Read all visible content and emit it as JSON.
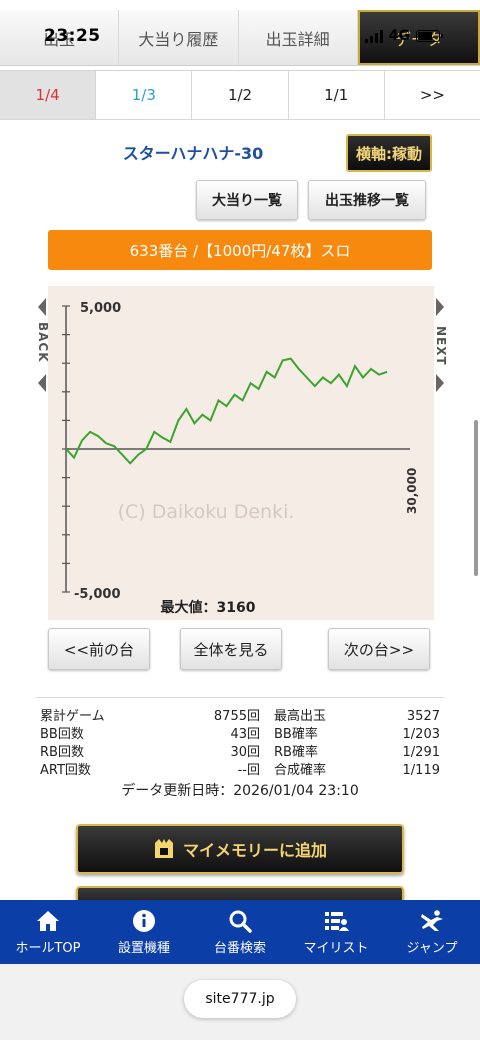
{
  "status_bar": {
    "time": "23:25",
    "network": "4G"
  },
  "top_tabs": [
    {
      "label": "出玉",
      "active": false
    },
    {
      "label": "大当り履歴",
      "active": false
    },
    {
      "label": "出玉詳細",
      "active": false
    },
    {
      "label": "データ",
      "active": true
    }
  ],
  "page_tabs": [
    {
      "label": "1/4"
    },
    {
      "label": "1/3"
    },
    {
      "label": "1/2"
    },
    {
      "label": "1/1"
    },
    {
      "label": ">>"
    }
  ],
  "machine": {
    "title": "スターハナハナ-30",
    "axis_button": "横軸:稼動",
    "jackpot_list_button": "大当り一覧",
    "payout_list_button": "出玉推移一覧",
    "bar_text": "633番台 /【1000円/47枚】スロ"
  },
  "chart_labels": {
    "back": "BACK",
    "next": "NEXT",
    "watermark": "(C) Daikoku Denki.",
    "max_text": "最大値：3160"
  },
  "chart_data": {
    "type": "line",
    "ylim": [
      -5000,
      5000
    ],
    "xlim": [
      0,
      30000
    ],
    "y_tick_labels": [
      "5,000",
      "-5,000"
    ],
    "x_tick_label": "30,000",
    "series": [
      {
        "color": "#3aa52c",
        "x": [
          0,
          700,
          1400,
          2100,
          2800,
          3500,
          4200,
          4900,
          5600,
          6300,
          7000,
          7700,
          8400,
          9100,
          9800,
          10500,
          11200,
          11900,
          12600,
          13300,
          14000,
          14700,
          15400,
          16100,
          16800,
          17500,
          18200,
          18900,
          19600,
          20300,
          21000,
          21700,
          22400,
          23100,
          23800,
          24500,
          25200,
          25900,
          26600,
          27300,
          28000
        ],
        "y": [
          0,
          -300,
          300,
          600,
          450,
          200,
          100,
          -200,
          -500,
          -200,
          0,
          600,
          400,
          250,
          1000,
          1400,
          900,
          1200,
          1000,
          1700,
          1500,
          1900,
          1700,
          2300,
          2100,
          2700,
          2500,
          3100,
          3160,
          2800,
          2500,
          2200,
          2500,
          2300,
          2600,
          2200,
          2900,
          2500,
          2800,
          2600,
          2700
        ]
      }
    ]
  },
  "nav_buttons": {
    "prev": "<<前の台",
    "all": "全体を見る",
    "next": "次の台>>"
  },
  "stats": [
    {
      "label": "累計ゲーム",
      "value": "8755回",
      "label2": "最高出玉",
      "value2": "3527"
    },
    {
      "label": "BB回数",
      "value": "43回",
      "label2": "BB確率",
      "value2": "1/203"
    },
    {
      "label": "RB回数",
      "value": "30回",
      "label2": "RB確率",
      "value2": "1/291"
    },
    {
      "label": "ART回数",
      "value": "--回",
      "label2": "合成確率",
      "value2": "1/119"
    }
  ],
  "updated": "データ更新日時：2026/01/04 23:10",
  "add_memory_button": "マイメモリーに追加",
  "bottom_nav": [
    {
      "label": "ホールTOP",
      "icon": "home-icon"
    },
    {
      "label": "設置機種",
      "icon": "info-icon"
    },
    {
      "label": "台番検索",
      "icon": "search-icon"
    },
    {
      "label": "マイリスト",
      "icon": "mylist-icon"
    },
    {
      "label": "ジャンプ",
      "icon": "jump-icon"
    }
  ],
  "url": "site777.jp"
}
